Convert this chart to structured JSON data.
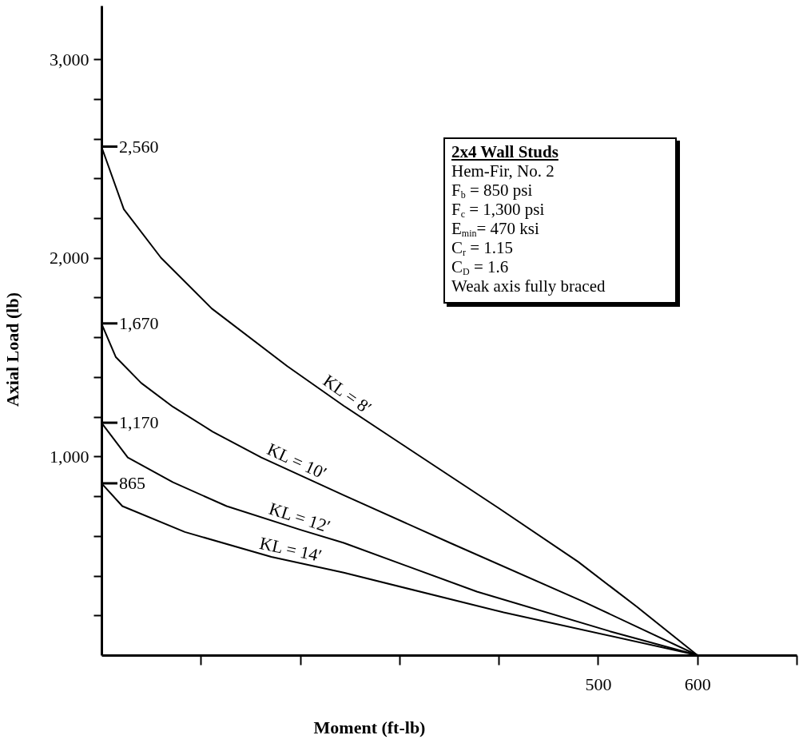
{
  "chart_data": {
    "type": "line",
    "xlabel": "Moment (ft-lb)",
    "ylabel": "Axial Load (lb)",
    "xlim": [
      0,
      700
    ],
    "ylim": [
      0,
      3270
    ],
    "xticks": [
      {
        "value": 100,
        "label": null
      },
      {
        "value": 200,
        "label": null
      },
      {
        "value": 300,
        "label": null
      },
      {
        "value": 400,
        "label": null
      },
      500,
      600,
      {
        "value": 700,
        "label": null
      }
    ],
    "yticks": [
      {
        "value": 200,
        "label": null
      },
      {
        "value": 400,
        "label": null
      },
      {
        "value": 600,
        "label": null
      },
      {
        "value": 800,
        "label": null
      },
      {
        "value": 1000,
        "label": "1,000"
      },
      {
        "value": 1200,
        "label": null
      },
      {
        "value": 1400,
        "label": null
      },
      {
        "value": 1600,
        "label": null
      },
      {
        "value": 1800,
        "label": null
      },
      {
        "value": 2000,
        "label": "2,000"
      },
      {
        "value": 2200,
        "label": null
      },
      {
        "value": 2400,
        "label": null
      },
      {
        "value": 2600,
        "label": null
      },
      {
        "value": 2800,
        "label": null
      },
      {
        "value": 3000,
        "label": "3,000"
      }
    ],
    "series": [
      {
        "color": "#000000",
        "x": [
          0,
          22.5,
          60,
          111,
          187,
          244,
          300,
          400,
          480,
          540,
          600
        ],
        "values": [
          2560,
          2245,
          2000,
          1745,
          1455,
          1255,
          1070,
          740,
          470,
          240,
          0
        ]
      },
      {
        "color": "#000000",
        "x": [
          0,
          14.5,
          40,
          72,
          112,
          161,
          244,
          351,
          485,
          600
        ],
        "values": [
          1670,
          1500,
          1370,
          1250,
          1125,
          995,
          805,
          565,
          270,
          0
        ]
      },
      {
        "color": "#000000",
        "x": [
          0,
          26.5,
          72,
          126,
          201,
          244,
          378,
          512,
          600
        ],
        "values": [
          1170,
          995,
          870,
          750,
          630,
          565,
          320,
          120,
          0
        ]
      },
      {
        "color": "#000000",
        "x": [
          0,
          21,
          84,
          171,
          244,
          405,
          600
        ],
        "values": [
          865,
          750,
          620,
          495,
          415,
          215,
          0
        ]
      }
    ],
    "annotations": [
      {
        "text": "2,560",
        "x": 0,
        "y": 2560
      },
      {
        "text": "1,670",
        "x": 0,
        "y": 1670
      },
      {
        "text": "1,170",
        "x": 0,
        "y": 1170
      },
      {
        "text": "865",
        "x": 0,
        "y": 865
      },
      {
        "text": "KL = 8′",
        "x": 241,
        "y": 1266
      },
      {
        "text": "KL = 10′",
        "x": 192,
        "y": 924
      },
      {
        "text": "KL = 12′",
        "x": 196,
        "y": 638
      },
      {
        "text": "KL = 14′",
        "x": 188,
        "y": 476
      },
      "2x4 Wall Studs",
      "Hem-Fir, No. 2",
      "F$_{b}$ = 850 psi",
      "F$_{c}$ = 1,300 psi",
      "E$_{min}$= 470 ksi",
      "C$_{r}$ = 1.15",
      "C$_{D}$ = 1.6",
      "Weak axis fully braced"
    ],
    "grid": false,
    "marker": "none",
    "line_style": "solid"
  }
}
